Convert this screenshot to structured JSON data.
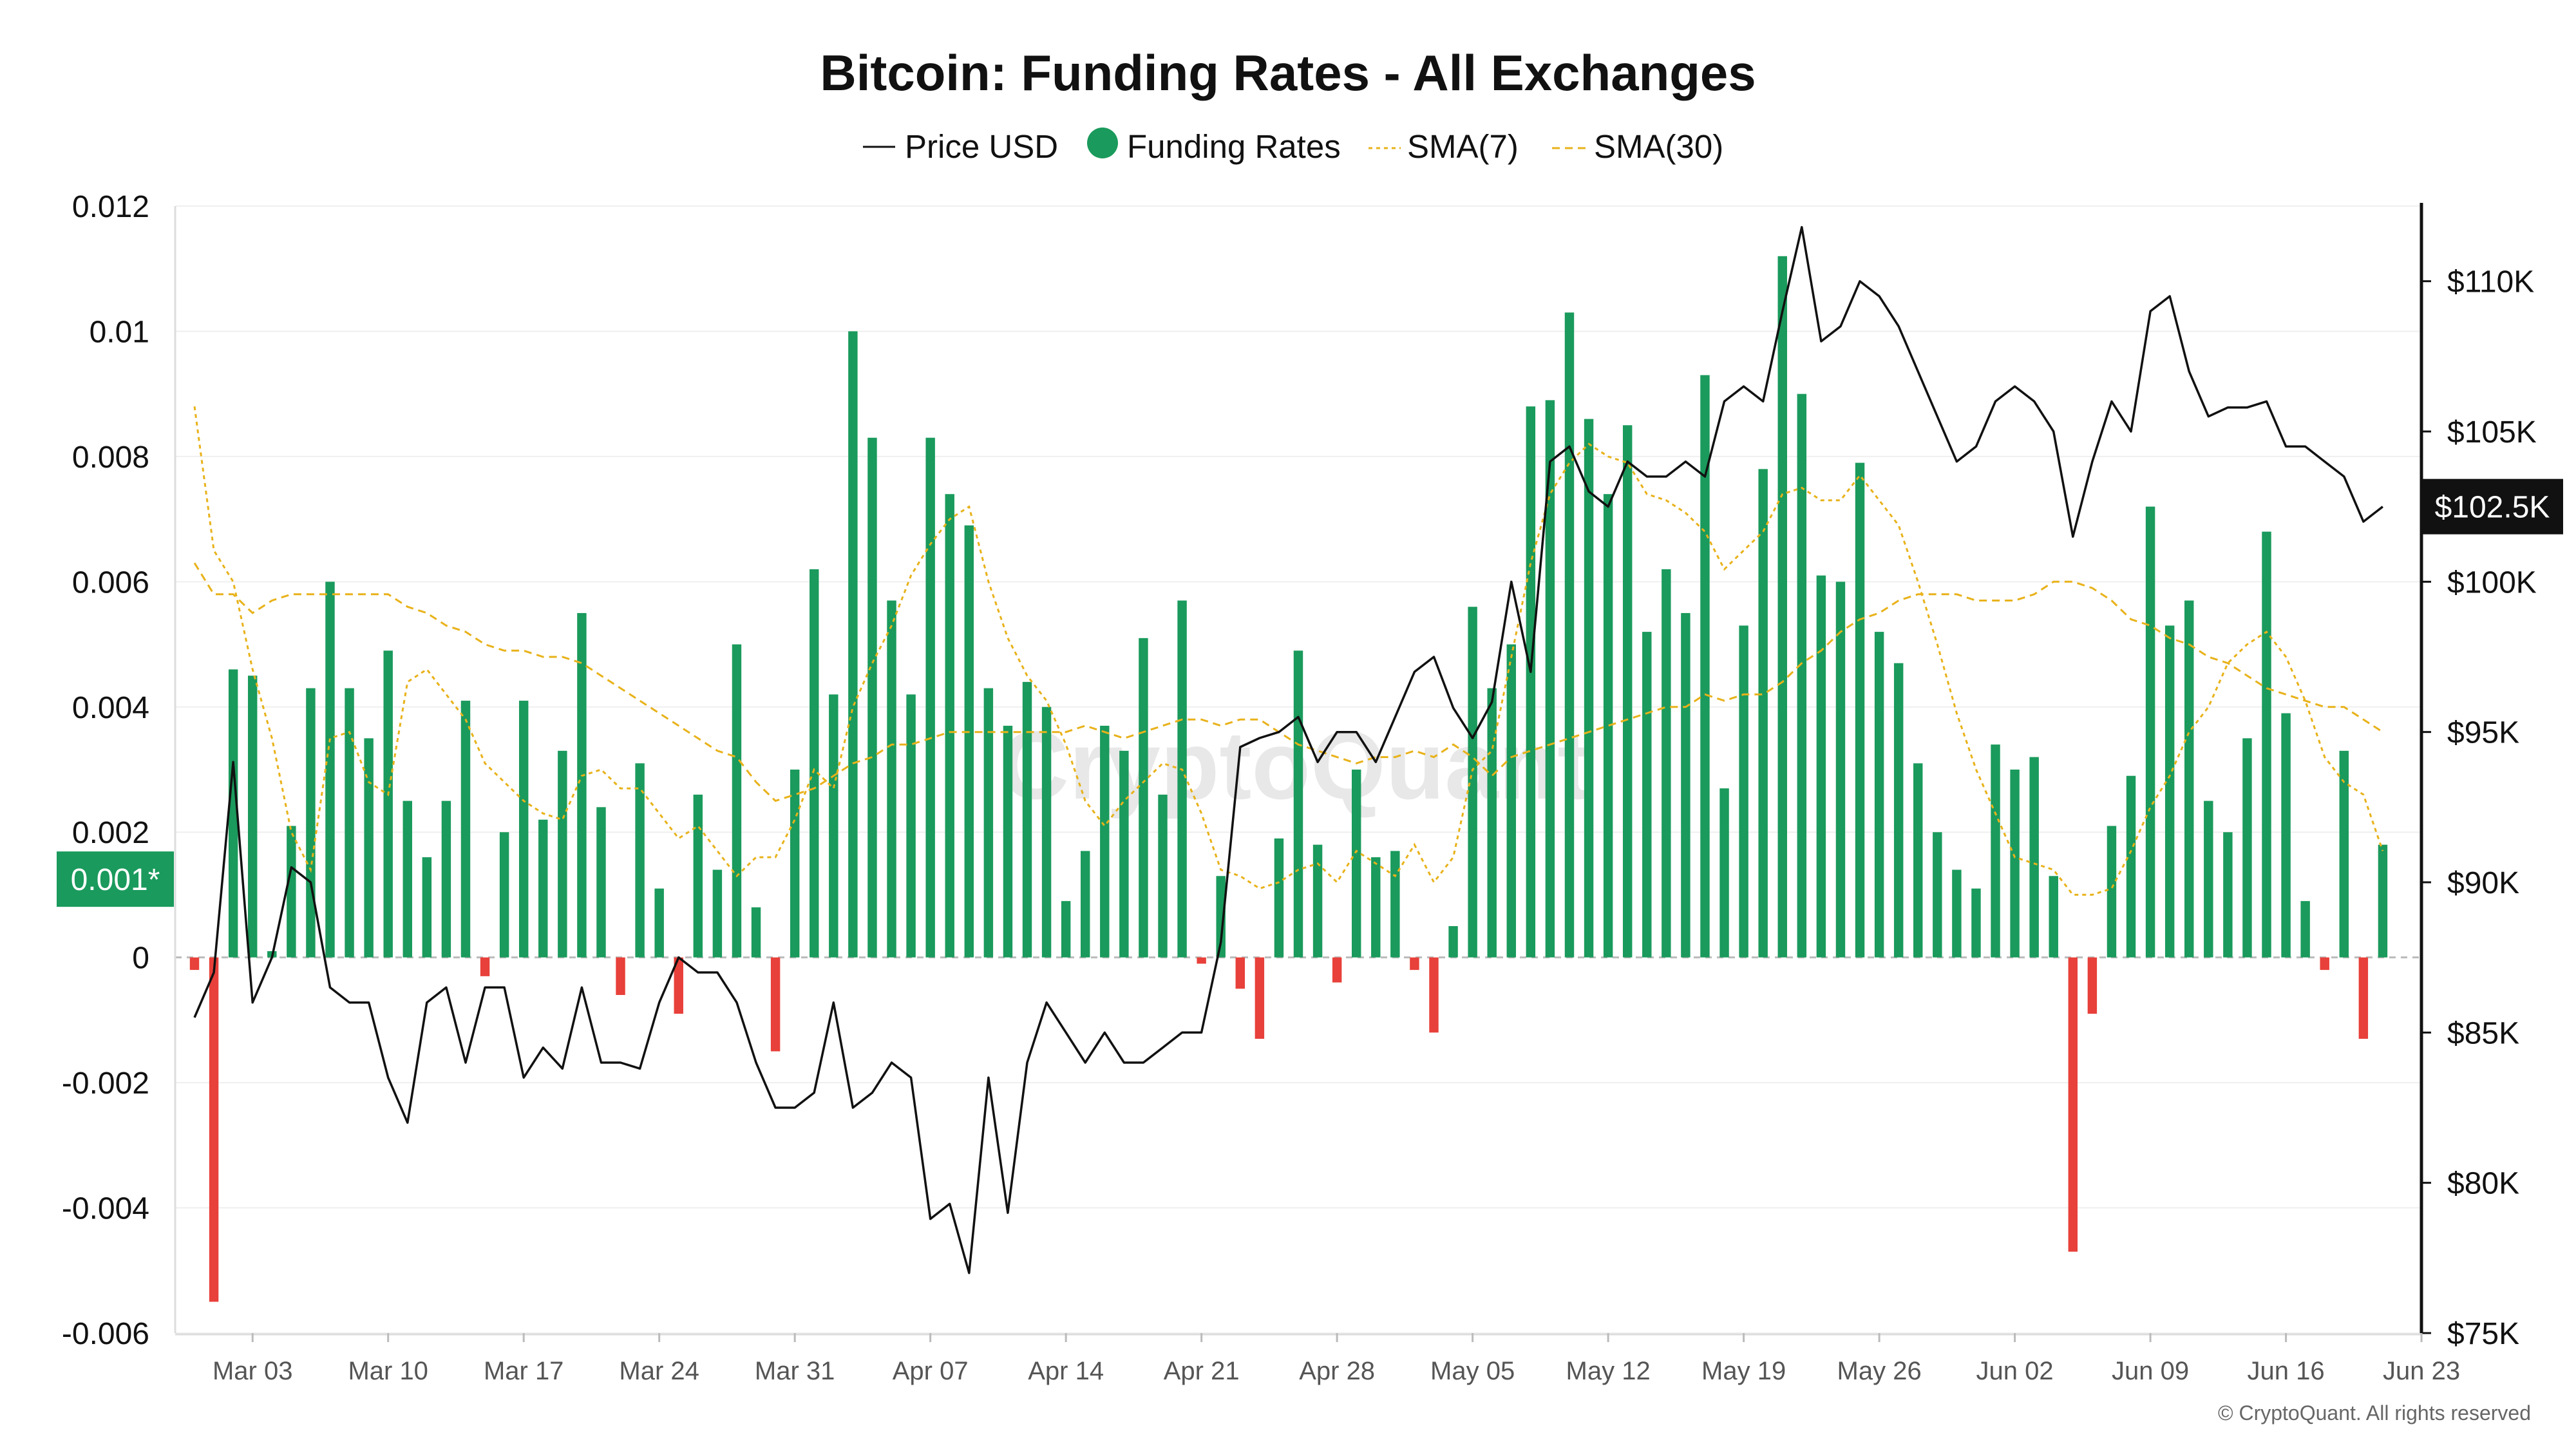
{
  "chart_data": {
    "type": "bar",
    "title": "Bitcoin: Funding Rates - All Exchanges",
    "watermark": "CryptoQuant",
    "copyright": "© CryptoQuant. All rights reserved",
    "legend_placement": "top-center",
    "grid": true,
    "x": {
      "start_date": "2025-02-28",
      "end_date": "2025-06-22",
      "tick_labels": [
        "Mar 03",
        "Mar 10",
        "Mar 17",
        "Mar 24",
        "Mar 31",
        "Apr 07",
        "Apr 14",
        "Apr 21",
        "Apr 28",
        "May 05",
        "May 12",
        "May 19",
        "May 26",
        "Jun 02",
        "Jun 09",
        "Jun 16",
        "Jun 23"
      ]
    },
    "y_left": {
      "range": [
        -0.006,
        0.012
      ],
      "tick_labels": [
        "0.012",
        "0.01",
        "0.008",
        "0.006",
        "0.004",
        "0.002",
        "0",
        "-0.002",
        "-0.004",
        "-0.006"
      ]
    },
    "y_right": {
      "range": [
        75000,
        112500
      ],
      "tick_labels": [
        "$110K",
        "$105K",
        "$100K",
        "$95K",
        "$90K",
        "$85K",
        "$80K",
        "$75K"
      ],
      "current_price_label": "$102.5K",
      "current_price": 102500
    },
    "funding_current_label": "0.001*",
    "funding_current": 0.00125,
    "series": [
      {
        "name": "Funding Rates",
        "color_positive": "#1a9a5c",
        "color_negative": "#e8403a",
        "values": [
          -0.0002,
          -0.0055,
          0.0046,
          0.0045,
          0.0001,
          0.0021,
          0.0043,
          0.006,
          0.0043,
          0.0035,
          0.0049,
          0.0025,
          0.0016,
          0.0025,
          0.0041,
          -0.0003,
          0.002,
          0.0041,
          0.0022,
          0.0033,
          0.0055,
          0.0024,
          -0.0006,
          0.0031,
          0.0011,
          -0.0009,
          0.0026,
          0.0014,
          0.005,
          0.0008,
          -0.0015,
          0.003,
          0.0062,
          0.0042,
          0.01,
          0.0083,
          0.0057,
          0.0042,
          0.0083,
          0.0074,
          0.0069,
          0.0043,
          0.0037,
          0.0044,
          0.004,
          0.0009,
          0.0017,
          0.0037,
          0.0033,
          0.0051,
          0.0026,
          0.0057,
          -0.0001,
          0.0013,
          -0.0005,
          -0.0013,
          0.0019,
          0.0049,
          0.0018,
          -0.0004,
          0.003,
          0.0016,
          0.0017,
          -0.0002,
          -0.0012,
          0.0005,
          0.0056,
          0.0043,
          0.005,
          0.0088,
          0.0089,
          0.0103,
          0.0086,
          0.0074,
          0.0085,
          0.0052,
          0.0062,
          0.0055,
          0.0093,
          0.0027,
          0.0053,
          0.0078,
          0.0112,
          0.009,
          0.0061,
          0.006,
          0.0079,
          0.0052,
          0.0047,
          0.0031,
          0.002,
          0.0014,
          0.0011,
          0.0034,
          0.003,
          0.0032,
          0.0013,
          -0.0047,
          -0.0009,
          0.0021,
          0.0029,
          0.0072,
          0.0053,
          0.0057,
          0.0025,
          0.002,
          0.0035,
          0.0068,
          0.0039,
          0.0009,
          -0.0002,
          0.0033,
          -0.0013,
          0.0018
        ]
      },
      {
        "name": "Price USD",
        "color": "#111111",
        "values": [
          85500,
          87000,
          94000,
          86000,
          87500,
          90500,
          90000,
          86500,
          86000,
          86000,
          83500,
          82000,
          86000,
          86500,
          84000,
          86500,
          86500,
          83500,
          84500,
          83800,
          86500,
          84000,
          84000,
          83800,
          86000,
          87500,
          87000,
          87000,
          86000,
          84000,
          82500,
          82500,
          83000,
          86000,
          82500,
          83000,
          84000,
          83500,
          78800,
          79300,
          77000,
          83500,
          79000,
          84000,
          86000,
          85000,
          84000,
          85000,
          84000,
          84000,
          84500,
          85000,
          85000,
          88000,
          94500,
          94800,
          95000,
          95500,
          94000,
          95000,
          95000,
          94000,
          95500,
          97000,
          97500,
          95800,
          94800,
          96000,
          100000,
          97000,
          104000,
          104500,
          103000,
          102500,
          104000,
          103500,
          103500,
          104000,
          103500,
          106000,
          106500,
          106000,
          109000,
          111800,
          108000,
          108500,
          110000,
          109500,
          108500,
          107000,
          105500,
          104000,
          104500,
          106000,
          106500,
          106000,
          105000,
          101500,
          104000,
          106000,
          105000,
          109000,
          109500,
          107000,
          105500,
          105800,
          105800,
          106000,
          104500,
          104500,
          104000,
          103500,
          102000,
          102500
        ]
      },
      {
        "name": "SMA(7)",
        "color": "#e8b21a",
        "dash": "6 6",
        "values": [
          0.0088,
          0.0065,
          0.006,
          0.0046,
          0.0035,
          0.002,
          0.0014,
          0.0035,
          0.0036,
          0.0028,
          0.0026,
          0.0044,
          0.0046,
          0.0042,
          0.0038,
          0.0031,
          0.0028,
          0.0025,
          0.0023,
          0.0022,
          0.0029,
          0.003,
          0.0027,
          0.0027,
          0.0023,
          0.0019,
          0.0021,
          0.0017,
          0.0013,
          0.0016,
          0.0016,
          0.0022,
          0.003,
          0.0027,
          0.004,
          0.0047,
          0.0053,
          0.0061,
          0.0066,
          0.007,
          0.0072,
          0.006,
          0.0051,
          0.0045,
          0.0041,
          0.0034,
          0.0025,
          0.0021,
          0.0025,
          0.0028,
          0.0031,
          0.003,
          0.0023,
          0.0014,
          0.0013,
          0.0011,
          0.0012,
          0.0014,
          0.0015,
          0.0012,
          0.0017,
          0.0015,
          0.0013,
          0.0018,
          0.0012,
          0.0016,
          0.003,
          0.0033,
          0.0048,
          0.0063,
          0.0074,
          0.0079,
          0.0082,
          0.008,
          0.0079,
          0.0074,
          0.0073,
          0.0071,
          0.0068,
          0.0062,
          0.0065,
          0.0068,
          0.0074,
          0.0075,
          0.0073,
          0.0073,
          0.0077,
          0.0073,
          0.0069,
          0.006,
          0.005,
          0.0039,
          0.003,
          0.0023,
          0.0016,
          0.0015,
          0.0014,
          0.001,
          0.001,
          0.0011,
          0.0017,
          0.0024,
          0.0029,
          0.0036,
          0.004,
          0.0047,
          0.005,
          0.0052,
          0.0048,
          0.0041,
          0.0032,
          0.0028,
          0.0026,
          0.0017
        ]
      },
      {
        "name": "SMA(30)",
        "color": "#e8b21a",
        "dash": "12 8",
        "values": [
          0.0063,
          0.0058,
          0.0058,
          0.0055,
          0.0057,
          0.0058,
          0.0058,
          0.0058,
          0.0058,
          0.0058,
          0.0058,
          0.0056,
          0.0055,
          0.0053,
          0.0052,
          0.005,
          0.0049,
          0.0049,
          0.0048,
          0.0048,
          0.0047,
          0.0045,
          0.0043,
          0.0041,
          0.0039,
          0.0037,
          0.0035,
          0.0033,
          0.0032,
          0.0028,
          0.0025,
          0.0026,
          0.0027,
          0.0029,
          0.0031,
          0.0032,
          0.0034,
          0.0034,
          0.0035,
          0.0036,
          0.0036,
          0.0036,
          0.0036,
          0.0036,
          0.0036,
          0.0036,
          0.0037,
          0.0036,
          0.0035,
          0.0036,
          0.0037,
          0.0038,
          0.0038,
          0.0037,
          0.0038,
          0.0038,
          0.0036,
          0.0034,
          0.0033,
          0.0032,
          0.0031,
          0.0032,
          0.0032,
          0.0033,
          0.0032,
          0.0034,
          0.0032,
          0.0029,
          0.0032,
          0.0033,
          0.0034,
          0.0035,
          0.0036,
          0.0037,
          0.0038,
          0.0039,
          0.004,
          0.004,
          0.0042,
          0.0041,
          0.0042,
          0.0042,
          0.0044,
          0.0047,
          0.0049,
          0.0052,
          0.0054,
          0.0055,
          0.0057,
          0.0058,
          0.0058,
          0.0058,
          0.0057,
          0.0057,
          0.0057,
          0.0058,
          0.006,
          0.006,
          0.0059,
          0.0057,
          0.0054,
          0.0053,
          0.0051,
          0.005,
          0.0048,
          0.0047,
          0.0045,
          0.0043,
          0.0042,
          0.0041,
          0.004,
          0.004,
          0.0038,
          0.0036
        ]
      }
    ]
  }
}
